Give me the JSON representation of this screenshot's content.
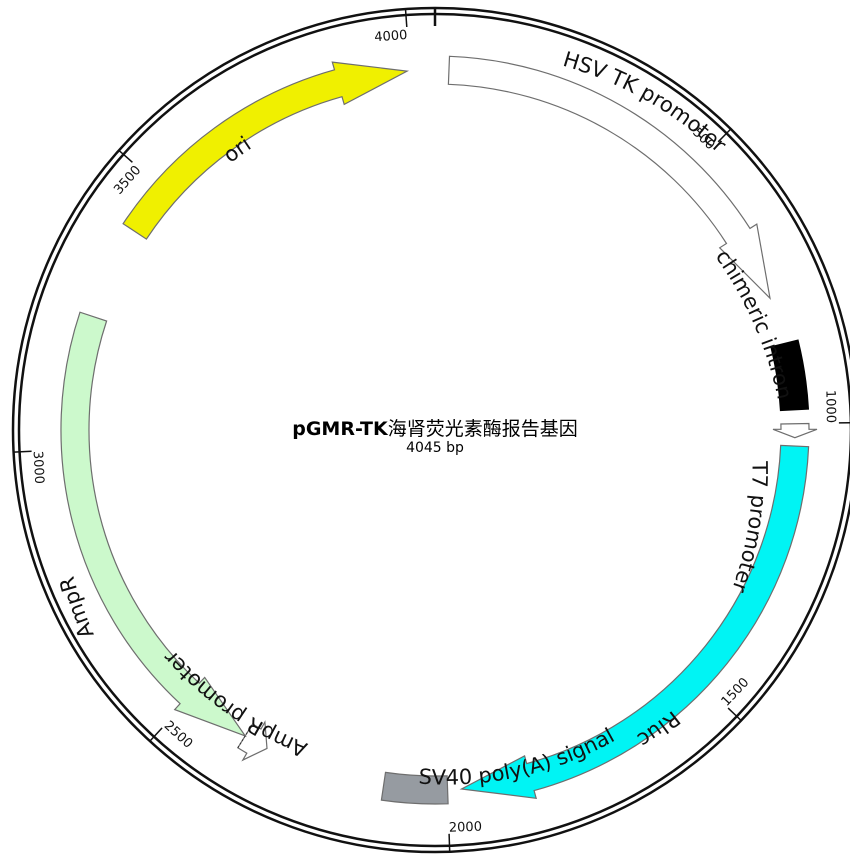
{
  "plasmid": {
    "name": "pGMR-TK",
    "description": "海肾荧光素酶报告基因",
    "size_label": "4045 bp",
    "length": 4045
  },
  "ticks": [
    {
      "pos": 0,
      "label": ""
    },
    {
      "pos": 500,
      "label": "500"
    },
    {
      "pos": 1000,
      "label": "1000"
    },
    {
      "pos": 1500,
      "label": "1500"
    },
    {
      "pos": 2000,
      "label": "2000"
    },
    {
      "pos": 2500,
      "label": "2500"
    },
    {
      "pos": 3000,
      "label": "3000"
    },
    {
      "pos": 3500,
      "label": "3500"
    },
    {
      "pos": 4000,
      "label": "4000"
    }
  ],
  "features": [
    {
      "name": "HSV TK promoter",
      "start": 25,
      "end": 770,
      "strand": 1,
      "color": "#ffffff",
      "shape": "arrow"
    },
    {
      "name": "chimeric intron",
      "start": 855,
      "end": 975,
      "strand": 0,
      "color": "#000000",
      "shape": "bar"
    },
    {
      "name": "T7 promoter",
      "start": 1000,
      "end": 1025,
      "strand": 1,
      "color": "#ffffff",
      "shape": "arrow"
    },
    {
      "name": "Rluc",
      "start": 1040,
      "end": 1975,
      "strand": 1,
      "color": "#00f4f4",
      "shape": "arrow"
    },
    {
      "name": "SV40 poly(A) signal",
      "start": 2000,
      "end": 2115,
      "strand": 0,
      "color": "#969ba1",
      "shape": "bar"
    },
    {
      "name": "AmpR promoter",
      "start": 2335,
      "end": 2380,
      "strand": -1,
      "color": "#ffffff",
      "shape": "arrow"
    },
    {
      "name": "AmpR",
      "start": 2380,
      "end": 3240,
      "strand": -1,
      "color": "#ccf9cc",
      "shape": "arrow"
    },
    {
      "name": "ori",
      "start": 3410,
      "end": 3995,
      "strand": 1,
      "color": "#f0f000",
      "shape": "arrow"
    }
  ]
}
